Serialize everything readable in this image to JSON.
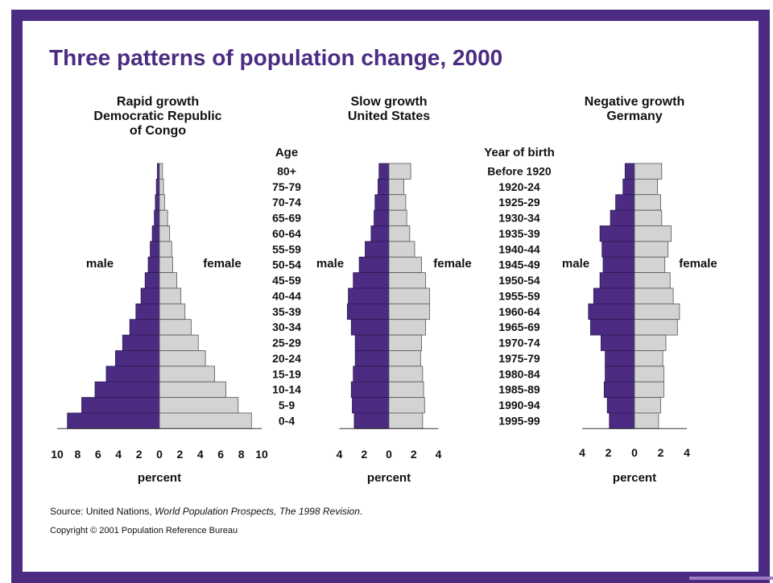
{
  "title": "Three patterns of population change, 2000",
  "source": {
    "prefix": "Source: United Nations, ",
    "italic": "World Population Prospects, The 1998 Revision",
    "suffix": "."
  },
  "copyright": "Copyright © 2001 Population Reference Bureau",
  "colors": {
    "frame": "#4b2c82",
    "male": "#4b2c82",
    "female": "#d3d3d3",
    "title": "#4b2c82"
  },
  "center_labels": {
    "age_header": "Age",
    "age_groups": [
      "80+",
      "75-79",
      "70-74",
      "65-69",
      "60-64",
      "55-59",
      "50-54",
      "45-59",
      "40-44",
      "35-39",
      "30-34",
      "25-29",
      "20-24",
      "15-19",
      "10-14",
      "5-9",
      "0-4"
    ],
    "birth_header": "Year of birth",
    "birth_years": [
      "Before 1920",
      "1920-24",
      "1925-29",
      "1930-34",
      "1935-39",
      "1940-44",
      "1945-49",
      "1950-54",
      "1955-59",
      "1960-64",
      "1965-69",
      "1970-74",
      "1975-79",
      "1980-84",
      "1985-89",
      "1990-94",
      "1995-99"
    ]
  },
  "chart_data": [
    {
      "type": "bar",
      "orientation": "horizontal-pyramid",
      "title_lines": [
        "Rapid growth",
        "Democratic Republic",
        "of Congo"
      ],
      "categories": [
        "80+",
        "75-79",
        "70-74",
        "65-69",
        "60-64",
        "55-59",
        "50-54",
        "45-59",
        "40-44",
        "35-39",
        "30-34",
        "25-29",
        "20-24",
        "15-19",
        "10-14",
        "5-9",
        "0-4"
      ],
      "series": [
        {
          "name": "male",
          "values": [
            0.2,
            0.3,
            0.4,
            0.5,
            0.7,
            0.9,
            1.1,
            1.4,
            1.8,
            2.3,
            2.9,
            3.6,
            4.3,
            5.2,
            6.3,
            7.6,
            9.0
          ]
        },
        {
          "name": "female",
          "values": [
            0.3,
            0.4,
            0.5,
            0.8,
            1.0,
            1.2,
            1.3,
            1.7,
            2.1,
            2.5,
            3.1,
            3.8,
            4.5,
            5.4,
            6.5,
            7.7,
            9.0
          ]
        }
      ],
      "side_labels": [
        "male",
        "female"
      ],
      "xticks": [
        "10",
        "8",
        "6",
        "4",
        "2",
        "0",
        "2",
        "4",
        "6",
        "8",
        "10"
      ],
      "xmax": 10,
      "xlabel": "percent"
    },
    {
      "type": "bar",
      "orientation": "horizontal-pyramid",
      "title_lines": [
        "Slow growth",
        "United States"
      ],
      "categories": [
        "80+",
        "75-79",
        "70-74",
        "65-69",
        "60-64",
        "55-59",
        "50-54",
        "45-59",
        "40-44",
        "35-39",
        "30-34",
        "25-29",
        "20-24",
        "15-19",
        "10-14",
        "5-9",
        "0-4"
      ],
      "series": [
        {
          "name": "male",
          "values": [
            1.0,
            1.1,
            1.4,
            1.5,
            1.8,
            2.4,
            3.0,
            3.6,
            4.1,
            4.2,
            3.8,
            3.4,
            3.4,
            3.6,
            3.8,
            3.7,
            3.5
          ]
        },
        {
          "name": "female",
          "values": [
            2.2,
            1.5,
            1.7,
            1.8,
            2.1,
            2.6,
            3.3,
            3.7,
            4.1,
            4.1,
            3.7,
            3.3,
            3.2,
            3.4,
            3.5,
            3.6,
            3.4
          ]
        }
      ],
      "side_labels": [
        "male",
        "female"
      ],
      "xticks": [
        "4",
        "2",
        "0",
        "2",
        "4"
      ],
      "xmax": 5,
      "xlabel": "percent"
    },
    {
      "type": "bar",
      "orientation": "horizontal-pyramid",
      "title_lines": [
        "Negative growth",
        "Germany"
      ],
      "categories": [
        "Before 1920",
        "1920-24",
        "1925-29",
        "1930-34",
        "1935-39",
        "1940-44",
        "1945-49",
        "1950-54",
        "1955-59",
        "1960-64",
        "1965-69",
        "1970-74",
        "1975-79",
        "1980-84",
        "1985-89",
        "1990-94",
        "1995-99"
      ],
      "series": [
        {
          "name": "male",
          "values": [
            0.9,
            1.1,
            1.8,
            2.3,
            3.3,
            3.1,
            3.0,
            3.3,
            3.9,
            4.4,
            4.2,
            3.2,
            2.8,
            2.8,
            2.9,
            2.6,
            2.4
          ]
        },
        {
          "name": "female",
          "values": [
            2.6,
            2.2,
            2.5,
            2.6,
            3.5,
            3.2,
            2.9,
            3.4,
            3.7,
            4.3,
            4.1,
            3.0,
            2.7,
            2.8,
            2.8,
            2.5,
            2.3
          ]
        }
      ],
      "side_labels": [
        "male",
        "female"
      ],
      "xticks": [
        "4",
        "2",
        "0",
        "2",
        "4"
      ],
      "xmax": 5,
      "xlabel": "percent"
    }
  ]
}
